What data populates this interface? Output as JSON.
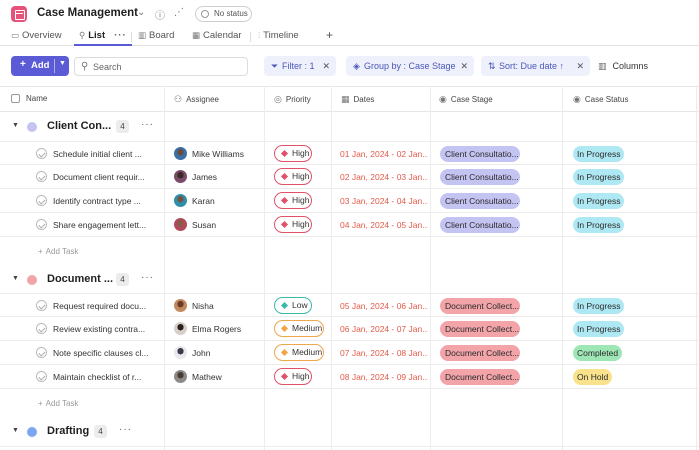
{
  "header": {
    "title": "Case Management",
    "status_label": "No status",
    "icons": [
      "calendar-app-icon",
      "chevron-down-icon",
      "info-icon",
      "share-icon"
    ]
  },
  "tabs": [
    {
      "label": "Overview",
      "icon": "overview-icon"
    },
    {
      "label": "List",
      "icon": "pin-icon",
      "active": true
    },
    {
      "label": "Board",
      "icon": "board-icon"
    },
    {
      "label": "Calendar",
      "icon": "calendar-icon"
    },
    {
      "label": "Timeline",
      "icon": "timeline-icon"
    }
  ],
  "toolbar": {
    "add_label": "Add",
    "search_placeholder": "Search",
    "filter_label": "Filter : 1",
    "group_label": "Group by : Case Stage",
    "sort_label": "Sort: Due date ↑",
    "columns_label": "Columns"
  },
  "columns": {
    "name": "Name",
    "assignee": "Assignee",
    "priority": "Priority",
    "dates": "Dates",
    "case_stage": "Case Stage",
    "case_status": "Case Status"
  },
  "add_task_label": "Add Task",
  "colors": {
    "accent": "#5b5bd6",
    "high": "#e0526a",
    "medium": "#f0a64a",
    "low": "#3ab8a8",
    "overdue_date": "#e25a4a",
    "stage_client": "#c4c4f3",
    "stage_document": "#f2a4a8",
    "status_in_progress": "#aee8f2",
    "status_completed": "#9ee6b6",
    "status_on_hold": "#f8e28c"
  },
  "groups": [
    {
      "name": "Client Con...",
      "count": "4",
      "color": "#c4c4f3",
      "tasks": [
        {
          "name": "Schedule initial client ...",
          "assignee": "Mike Williams",
          "priority": "High",
          "dates": "01 Jan, 2024 - 02 Jan...",
          "stage": "Client Consultatio...",
          "status": "In Progress"
        },
        {
          "name": "Document client requir...",
          "assignee": "James",
          "priority": "High",
          "dates": "02 Jan, 2024 - 03 Jan...",
          "stage": "Client Consultatio...",
          "status": "In Progress"
        },
        {
          "name": "Identify contract type ...",
          "assignee": "Karan",
          "priority": "High",
          "dates": "03 Jan, 2024 - 04 Jan...",
          "stage": "Client Consultatio...",
          "status": "In Progress"
        },
        {
          "name": "Share engagement lett...",
          "assignee": "Susan",
          "priority": "High",
          "dates": "04 Jan, 2024 - 05 Jan...",
          "stage": "Client Consultatio...",
          "status": "In Progress"
        }
      ]
    },
    {
      "name": "Document ...",
      "count": "4",
      "color": "#f2a4a8",
      "tasks": [
        {
          "name": "Request required docu...",
          "assignee": "Nisha",
          "priority": "Low",
          "dates": "05 Jan, 2024 - 06 Jan...",
          "stage": "Document Collect...",
          "status": "In Progress"
        },
        {
          "name": "Review existing contra...",
          "assignee": "Elma Rogers",
          "priority": "Medium",
          "dates": "06 Jan, 2024 - 07 Jan...",
          "stage": "Document Collect...",
          "status": "In Progress"
        },
        {
          "name": "Note specific clauses cl...",
          "assignee": "John",
          "priority": "Medium",
          "dates": "07 Jan, 2024 - 08 Jan...",
          "stage": "Document Collect...",
          "status": "Completed"
        },
        {
          "name": "Maintain checklist of r...",
          "assignee": "Mathew",
          "priority": "High",
          "dates": "08 Jan, 2024 - 09 Jan...",
          "stage": "Document Collect...",
          "status": "On Hold"
        }
      ]
    },
    {
      "name": "Drafting",
      "count": "4",
      "color": "#7aa7f0",
      "tasks": []
    }
  ]
}
